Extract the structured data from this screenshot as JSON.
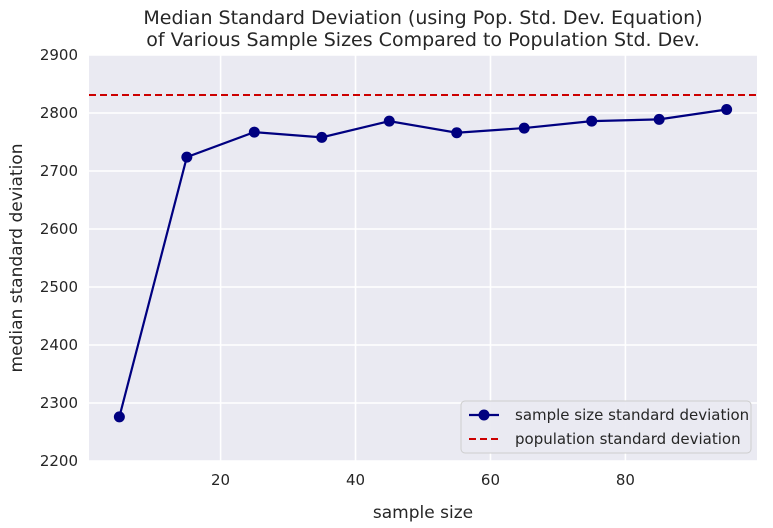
{
  "chart_data": {
    "type": "line",
    "title": [
      "Median Standard Deviation (using Pop. Std. Dev. Equation)",
      "of Various Sample Sizes Compared to Population Std. Dev."
    ],
    "xlabel": "sample size",
    "ylabel": "median standard deviation",
    "xlim": [
      0.5,
      99.5
    ],
    "ylim": [
      2200,
      2900
    ],
    "xticks": [
      20,
      40,
      60,
      80
    ],
    "yticks": [
      2200,
      2300,
      2400,
      2500,
      2600,
      2700,
      2800,
      2900
    ],
    "grid": true,
    "legend_position": "lower-right",
    "x": [
      5,
      15,
      25,
      35,
      45,
      55,
      65,
      75,
      85,
      95
    ],
    "series": [
      {
        "name": "sample size standard deviation",
        "values": [
          2276,
          2724,
          2767,
          2758,
          2786,
          2766,
          2774,
          2786,
          2789,
          2806
        ],
        "color": "#000080",
        "marker": "circle",
        "line_style": "solid"
      }
    ],
    "reference_lines": [
      {
        "name": "population standard deviation",
        "y": 2831,
        "color": "#cc0000",
        "line_style": "dashed"
      }
    ],
    "plot_background": "#eaeaf2",
    "grid_color": "#ffffff"
  }
}
